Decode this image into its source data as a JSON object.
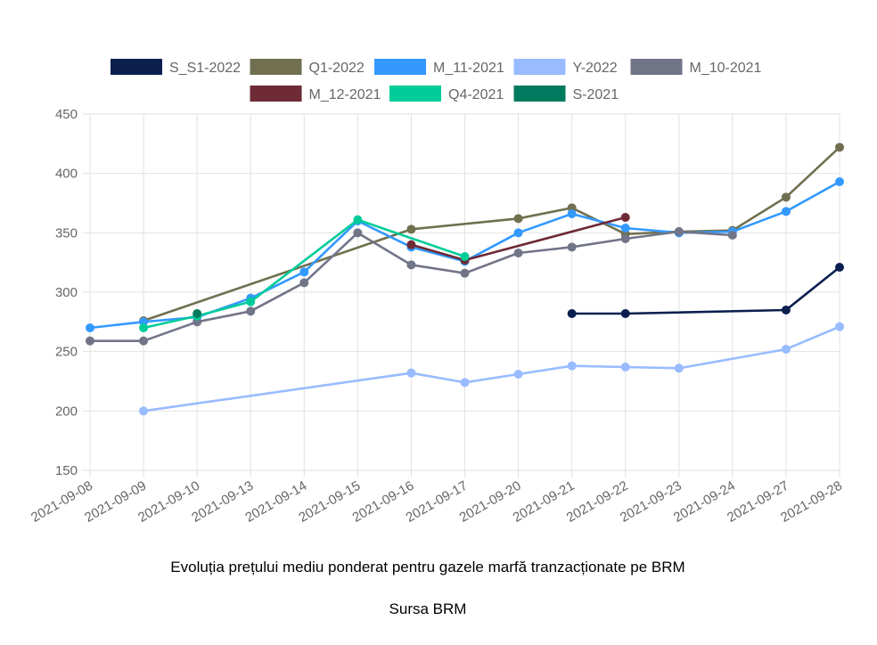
{
  "chart_data": {
    "type": "line",
    "categories": [
      "2021-09-08",
      "2021-09-09",
      "2021-09-10",
      "2021-09-13",
      "2021-09-14",
      "2021-09-15",
      "2021-09-16",
      "2021-09-17",
      "2021-09-20",
      "2021-09-21",
      "2021-09-22",
      "2021-09-23",
      "2021-09-24",
      "2021-09-27",
      "2021-09-28"
    ],
    "ylim": [
      150,
      450
    ],
    "yticks": [
      150,
      200,
      250,
      300,
      350,
      400,
      450
    ],
    "grid": true,
    "legend_position": "top",
    "series": [
      {
        "name": "S_S1-2022",
        "color": "#0b1f4f",
        "values": [
          null,
          null,
          null,
          null,
          null,
          null,
          null,
          null,
          null,
          282,
          282,
          null,
          null,
          285,
          321
        ]
      },
      {
        "name": "Q1-2022",
        "color": "#707050",
        "values": [
          null,
          276,
          null,
          null,
          null,
          null,
          353,
          null,
          362,
          371,
          349,
          351,
          352,
          380,
          422
        ]
      },
      {
        "name": "M_11-2021",
        "color": "#3399ff",
        "values": [
          270,
          275,
          279,
          295,
          317,
          360,
          338,
          326,
          350,
          366,
          354,
          350,
          351,
          368,
          393
        ]
      },
      {
        "name": "Y-2022",
        "color": "#99bbff",
        "values": [
          null,
          200,
          null,
          null,
          null,
          null,
          232,
          224,
          231,
          238,
          237,
          236,
          null,
          252,
          271
        ]
      },
      {
        "name": "M_10-2021",
        "color": "#727588",
        "values": [
          259,
          259,
          275,
          284,
          308,
          350,
          323,
          316,
          333,
          338,
          345,
          351,
          348,
          null,
          null
        ]
      },
      {
        "name": "M_12-2021",
        "color": "#6e2a35",
        "values": [
          null,
          null,
          null,
          null,
          null,
          null,
          340,
          327,
          null,
          null,
          363,
          null,
          null,
          null,
          null
        ]
      },
      {
        "name": "Q4-2021",
        "color": "#00cc99",
        "values": [
          null,
          270,
          280,
          292,
          null,
          361,
          null,
          330,
          null,
          null,
          null,
          null,
          null,
          null,
          null
        ]
      },
      {
        "name": "S-2021",
        "color": "#007a5e",
        "values": [
          null,
          null,
          282,
          null,
          null,
          null,
          null,
          null,
          null,
          null,
          null,
          null,
          null,
          null,
          null
        ]
      }
    ]
  },
  "caption": {
    "title": "Evoluția prețului mediu ponderat pentru gazele marfă tranzacționate pe BRM",
    "source": "Sursa BRM"
  }
}
